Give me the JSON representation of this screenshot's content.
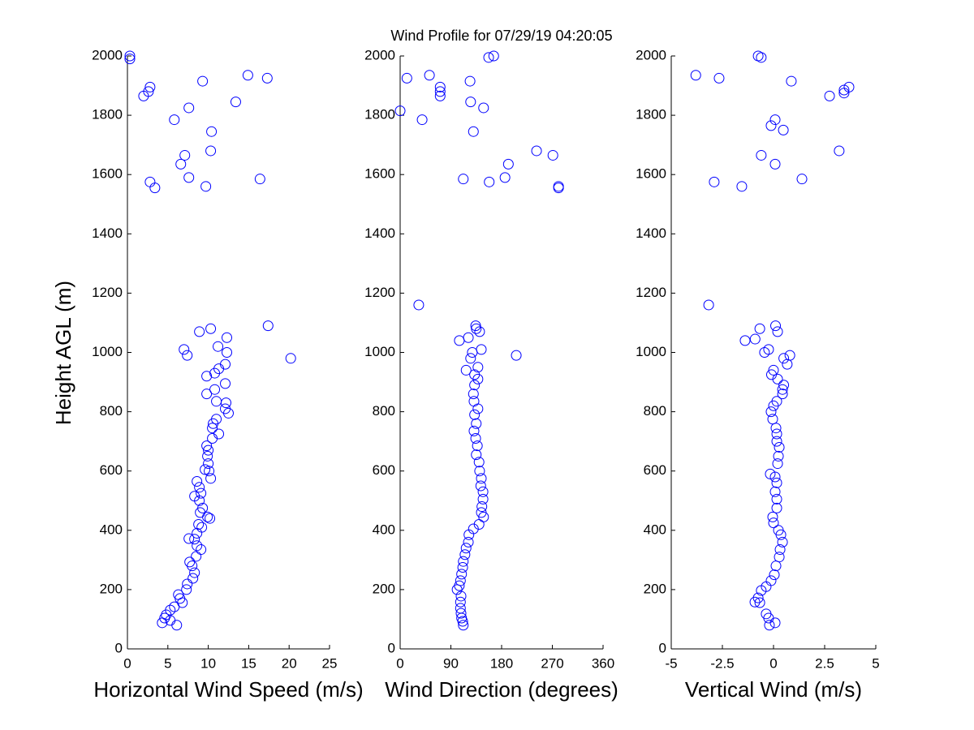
{
  "chart_data": [
    {
      "type": "scatter",
      "title": "Wind Profile for  07/29/19 04:20:05",
      "x_label": "Horizontal Wind Speed (m/s)",
      "y_label": "Height AGL (m)",
      "color": "#0000ff",
      "xlim": [
        0,
        25
      ],
      "xticks": [
        0,
        5,
        10,
        15,
        20,
        25
      ],
      "ylim": [
        0,
        2000
      ],
      "yticks": [
        0,
        200,
        400,
        600,
        800,
        1000,
        1200,
        1400,
        1600,
        1800,
        2000
      ],
      "x": [
        0.3,
        0.3,
        9.3,
        14.9,
        17.3,
        2.8,
        2.6,
        2.0,
        13.4,
        7.6,
        5.8,
        10.4,
        7.1,
        10.3,
        6.6,
        7.6,
        16.4,
        2.8,
        3.4,
        9.7,
        17.4,
        10.3,
        8.9,
        12.3,
        7.0,
        7.4,
        20.2,
        11.2,
        12.3,
        12.1,
        11.3,
        10.8,
        9.8,
        12.1,
        10.8,
        9.8,
        11.0,
        12.2,
        12.1,
        12.5,
        11.0,
        10.6,
        10.5,
        11.3,
        10.5,
        9.8,
        10.0,
        9.9,
        10.0,
        9.6,
        10.1,
        10.3,
        8.6,
        8.9,
        9.1,
        8.3,
        8.9,
        9.3,
        9.0,
        9.9,
        10.2,
        8.8,
        9.2,
        8.6,
        8.3,
        7.6,
        8.6,
        9.1,
        8.5,
        7.7,
        8.0,
        8.3,
        8.1,
        7.4,
        7.3,
        6.3,
        6.5,
        6.8,
        5.8,
        5.3,
        4.8,
        4.6,
        5.3,
        4.3,
        6.1
      ],
      "values": [
        2000,
        1990,
        1915,
        1935,
        1925,
        1895,
        1880,
        1865,
        1845,
        1825,
        1785,
        1745,
        1665,
        1680,
        1635,
        1590,
        1585,
        1575,
        1555,
        1560,
        1090,
        1080,
        1070,
        1050,
        1010,
        990,
        980,
        1020,
        1000,
        960,
        945,
        930,
        920,
        895,
        875,
        860,
        835,
        830,
        810,
        795,
        775,
        760,
        745,
        725,
        710,
        685,
        670,
        650,
        625,
        605,
        600,
        575,
        565,
        545,
        525,
        515,
        500,
        475,
        460,
        445,
        440,
        420,
        410,
        390,
        370,
        372,
        348,
        335,
        312,
        293,
        280,
        257,
        238,
        219,
        200,
        183,
        170,
        156,
        142,
        131,
        115,
        104,
        96,
        88,
        80
      ]
    },
    {
      "type": "scatter",
      "x_label": "Wind Direction (degrees)",
      "color": "#0000ff",
      "xlim": [
        0,
        360
      ],
      "xticks": [
        0,
        90,
        180,
        270,
        360
      ],
      "ylim": [
        0,
        2000
      ],
      "yticks": [
        0,
        200,
        400,
        600,
        800,
        1000,
        1200,
        1400,
        1600,
        1800,
        2000
      ],
      "x": [
        166,
        157,
        12,
        52,
        124,
        71,
        71,
        71,
        0,
        125,
        148,
        39,
        130,
        242,
        271,
        192,
        186,
        112,
        158,
        281,
        281,
        33,
        134,
        135,
        141,
        121,
        105,
        144,
        128,
        125,
        206,
        138,
        117,
        132,
        138,
        132,
        130,
        131,
        138,
        132,
        135,
        131,
        134,
        137,
        135,
        140,
        141,
        144,
        143,
        147,
        147,
        145,
        144,
        148,
        140,
        130,
        122,
        121,
        117,
        115,
        112,
        111,
        109,
        107,
        105,
        101,
        108,
        107,
        107,
        108,
        109,
        111,
        112
      ],
      "values": [
        2000,
        1995,
        1925,
        1935,
        1915,
        1895,
        1880,
        1865,
        1815,
        1845,
        1825,
        1785,
        1745,
        1680,
        1665,
        1635,
        1590,
        1585,
        1575,
        1560,
        1555,
        1160,
        1090,
        1080,
        1070,
        1050,
        1040,
        1010,
        1000,
        980,
        990,
        950,
        940,
        925,
        910,
        890,
        860,
        835,
        810,
        790,
        760,
        735,
        710,
        685,
        655,
        630,
        600,
        575,
        550,
        530,
        505,
        480,
        460,
        445,
        420,
        405,
        385,
        360,
        340,
        318,
        295,
        275,
        252,
        230,
        213,
        200,
        178,
        158,
        137,
        120,
        104,
        93,
        80
      ]
    },
    {
      "type": "scatter",
      "x_label": "Vertical Wind (m/s)",
      "color": "#0000ff",
      "xlim": [
        -5,
        5
      ],
      "xticks": [
        -5,
        -2.5,
        0,
        2.5,
        5
      ],
      "ylim": [
        0,
        2000
      ],
      "yticks": [
        0,
        200,
        400,
        600,
        800,
        1000,
        1200,
        1400,
        1600,
        1800,
        2000
      ],
      "x": [
        -0.75,
        -0.6,
        -3.8,
        -2.66,
        0.87,
        3.69,
        3.45,
        3.45,
        2.74,
        0.08,
        -0.12,
        0.48,
        3.21,
        -0.6,
        0.08,
        -2.9,
        1.39,
        -1.55,
        -3.17,
        0.1,
        0.2,
        -0.67,
        -1.39,
        -0.9,
        -0.24,
        -0.44,
        0.5,
        0.8,
        0.67,
        0.0,
        -0.1,
        0.2,
        0.5,
        0.44,
        0.44,
        0.16,
        0.0,
        -0.12,
        -0.04,
        0.12,
        0.16,
        0.16,
        0.28,
        0.24,
        0.2,
        -0.16,
        0.08,
        0.16,
        0.08,
        0.16,
        0.16,
        -0.04,
        0.0,
        0.24,
        0.36,
        0.44,
        0.32,
        0.28,
        0.12,
        0.04,
        -0.12,
        -0.36,
        -0.6,
        -0.75,
        -0.67,
        -0.91,
        -0.36,
        -0.24,
        0.08,
        -0.2
      ],
      "values": [
        2000,
        1995,
        1935,
        1925,
        1915,
        1895,
        1885,
        1875,
        1865,
        1785,
        1765,
        1750,
        1680,
        1665,
        1635,
        1575,
        1585,
        1560,
        1160,
        1090,
        1070,
        1080,
        1040,
        1045,
        1010,
        1000,
        980,
        990,
        960,
        940,
        925,
        910,
        890,
        875,
        860,
        835,
        820,
        800,
        775,
        745,
        725,
        700,
        680,
        650,
        625,
        590,
        580,
        560,
        530,
        505,
        475,
        445,
        425,
        400,
        385,
        360,
        335,
        310,
        280,
        250,
        230,
        210,
        197,
        172,
        156,
        158,
        118,
        104,
        88,
        80
      ]
    }
  ]
}
